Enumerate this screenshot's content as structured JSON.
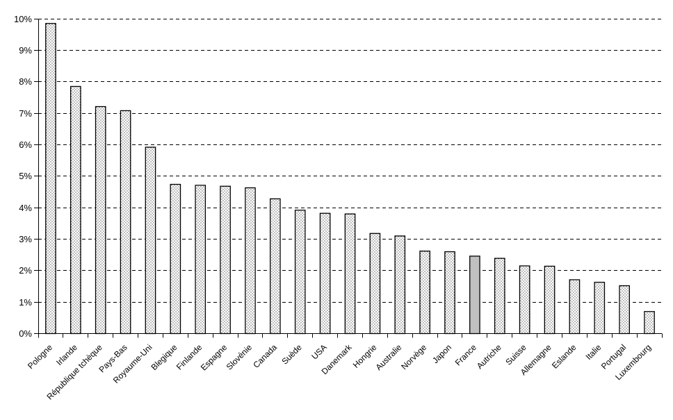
{
  "page": {
    "background": "#ffffff"
  },
  "chart_data": {
    "type": "bar",
    "title": "",
    "xlabel": "",
    "ylabel": "",
    "categories": [
      "Pologne",
      "Irlande",
      "République tchèque",
      "Pays-Bas",
      "Royaume-Uni",
      "Blegique",
      "Finlande",
      "Espagne",
      "Slovénie",
      "Canada",
      "Suède",
      "USA",
      "Danemark",
      "Hongrie",
      "Australie",
      "Norvège",
      "Japon",
      "France",
      "Autriche",
      "Suisse",
      "Allemagne",
      "Eslande",
      "Italie",
      "Portugal",
      "Luxembourg"
    ],
    "values": [
      9.85,
      7.85,
      7.21,
      7.08,
      5.92,
      4.74,
      4.71,
      4.68,
      4.63,
      4.28,
      3.92,
      3.82,
      3.8,
      3.18,
      3.1,
      2.62,
      2.6,
      2.46,
      2.39,
      2.15,
      2.14,
      1.71,
      1.63,
      1.52,
      0.7
    ],
    "ylim": [
      0,
      10
    ],
    "ytick_step": 1,
    "ytick_labels": [
      "0%",
      "1%",
      "2%",
      "3%",
      "4%",
      "5%",
      "6%",
      "7%",
      "8%",
      "9%",
      "10%"
    ],
    "grid": "dashed-horizontal",
    "legend": "none",
    "x_label_rotation_deg": -45,
    "highlight_category": "France",
    "colors": {
      "bar_fill": "#ffffff",
      "bar_dot": "#000000",
      "bar_border": "#000000",
      "highlight_fill": "#c0c0c0",
      "gridline": "#000000",
      "axis": "#000000",
      "text": "#000000"
    }
  }
}
